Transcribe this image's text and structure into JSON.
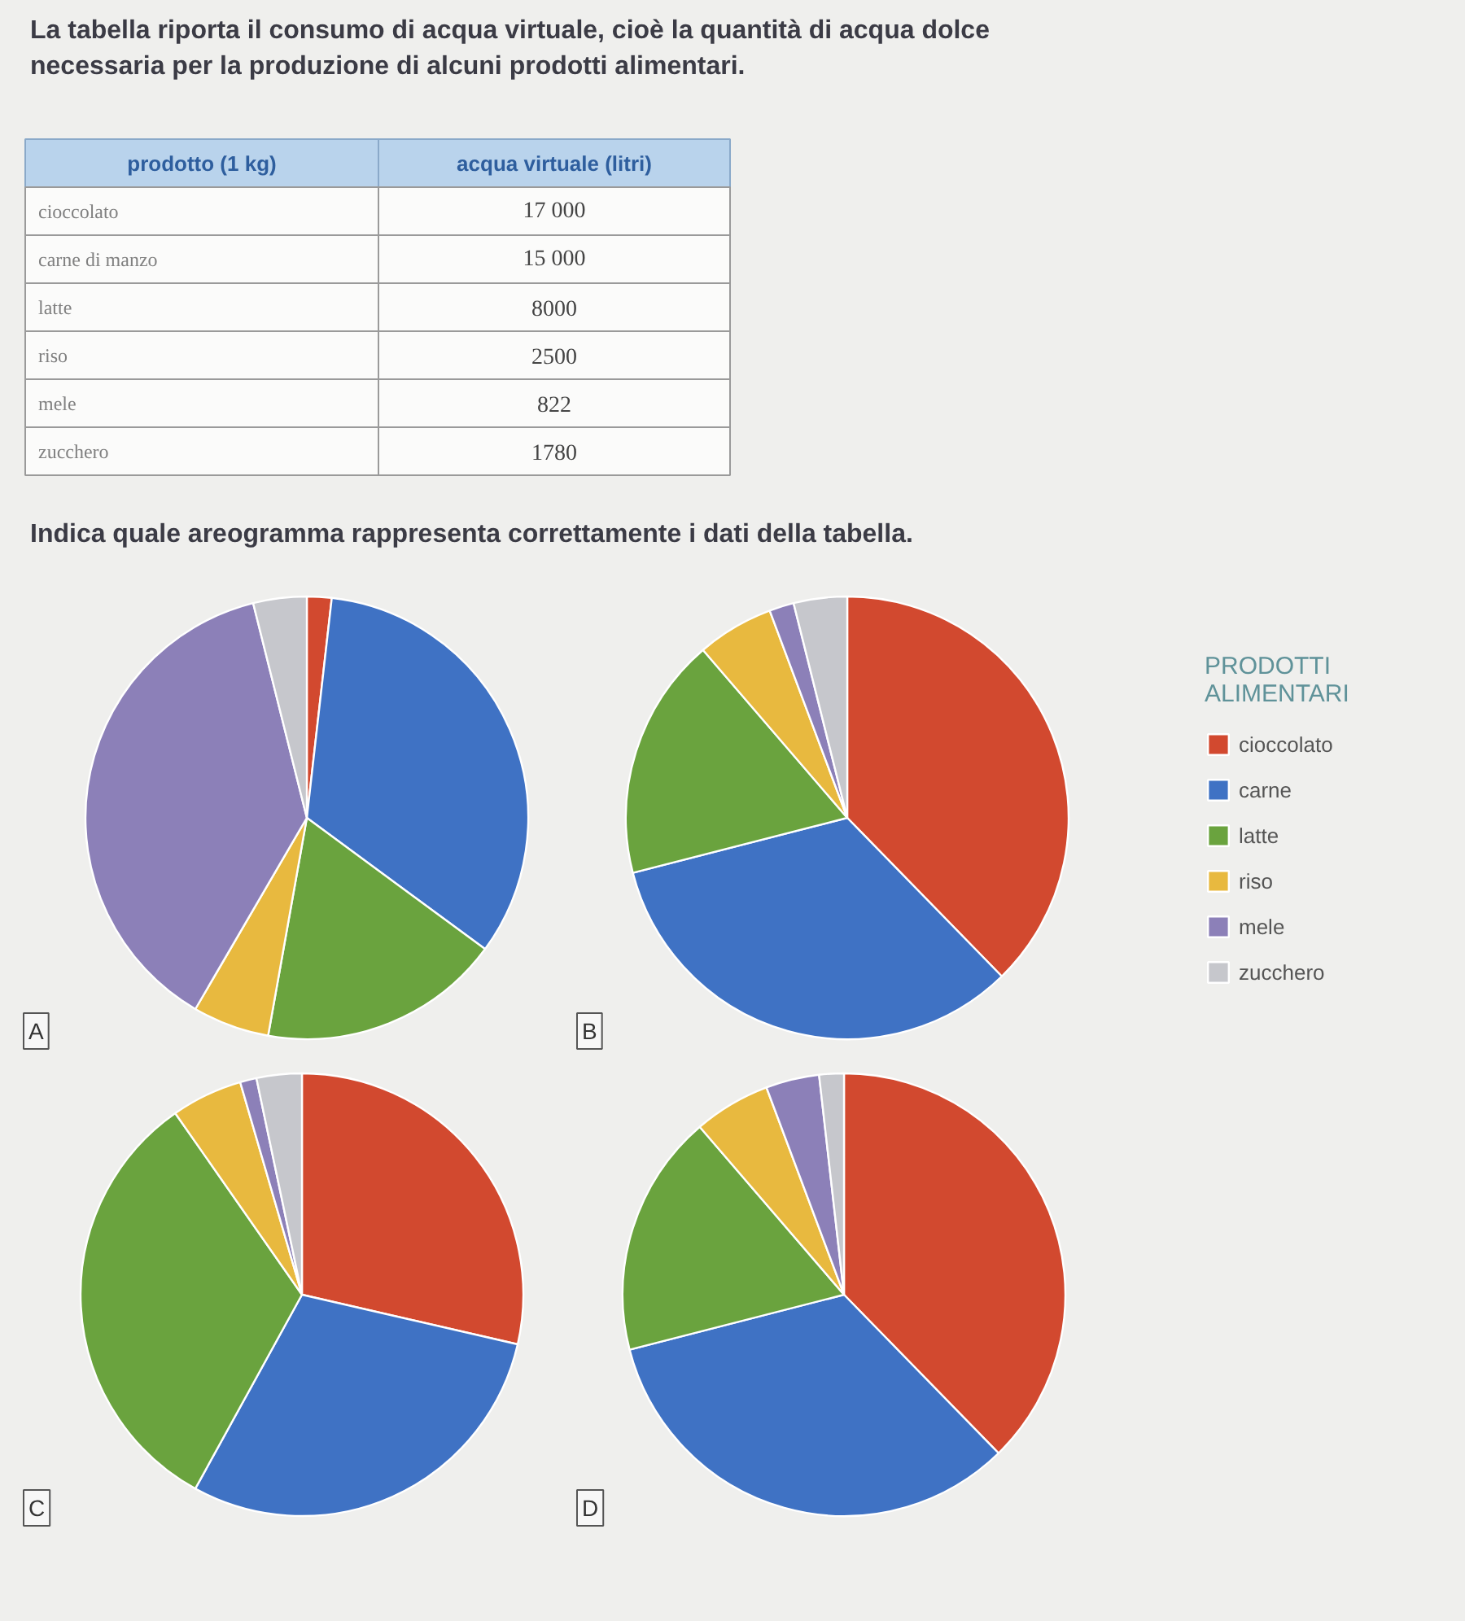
{
  "chart_data": [
    {
      "type": "other",
      "title": "La tabella riporta il consumo di acqua virtuale, cioè la quantità di acqua dolce necessaria per la produzione di alcuni prodotti alimentari.",
      "xlabel": "prodotto (1 kg)",
      "ylabel": "acqua virtuale (litri)",
      "categories": [
        "cioccolato",
        "carne di manzo",
        "latte",
        "riso",
        "mele",
        "zucchero"
      ],
      "values": [
        17000,
        15000,
        8000,
        2500,
        822,
        1780
      ],
      "value_labels": [
        "17 000",
        "15 000",
        "8000",
        "2500",
        "822",
        "1780"
      ],
      "annotations": [
        "Indica quale areogramma rappresenta correttamente i dati della tabella."
      ]
    },
    {
      "type": "pie",
      "title": "A",
      "categories": [
        null,
        null,
        null,
        null,
        null,
        null
      ],
      "values": [
        1.8,
        33.3,
        17.7,
        5.6,
        37.7,
        3.9
      ],
      "colors": [
        "#d2492f",
        "#3f72c4",
        "#6aa33e",
        "#e8b93f",
        "#8c80b8",
        "#c6c7cc"
      ]
    },
    {
      "type": "pie",
      "title": "B",
      "categories": [
        "cioccolato",
        "carne",
        "latte",
        "riso",
        "mele",
        "zucchero"
      ],
      "values": [
        37.7,
        33.3,
        17.7,
        5.6,
        1.8,
        3.9
      ],
      "colors": [
        "#d2492f",
        "#3f72c4",
        "#6aa33e",
        "#e8b93f",
        "#8c80b8",
        "#c6c7cc"
      ],
      "legend": "right",
      "legend_title": "PRODOTTI ALIMENTARI"
    },
    {
      "type": "pie",
      "title": "C",
      "categories": [
        null,
        null,
        null,
        null,
        null,
        null
      ],
      "values": [
        28.6,
        29.4,
        32.3,
        5.2,
        1.2,
        3.3
      ],
      "colors": [
        "#d2492f",
        "#3f72c4",
        "#6aa33e",
        "#e8b93f",
        "#8c80b8",
        "#c6c7cc"
      ]
    },
    {
      "type": "pie",
      "title": "D",
      "categories": [
        null,
        null,
        null,
        null,
        null,
        null
      ],
      "values": [
        37.7,
        33.3,
        17.7,
        5.6,
        3.9,
        1.8
      ],
      "colors": [
        "#d2492f",
        "#3f72c4",
        "#6aa33e",
        "#e8b93f",
        "#8c80b8",
        "#c6c7cc"
      ]
    }
  ]
}
